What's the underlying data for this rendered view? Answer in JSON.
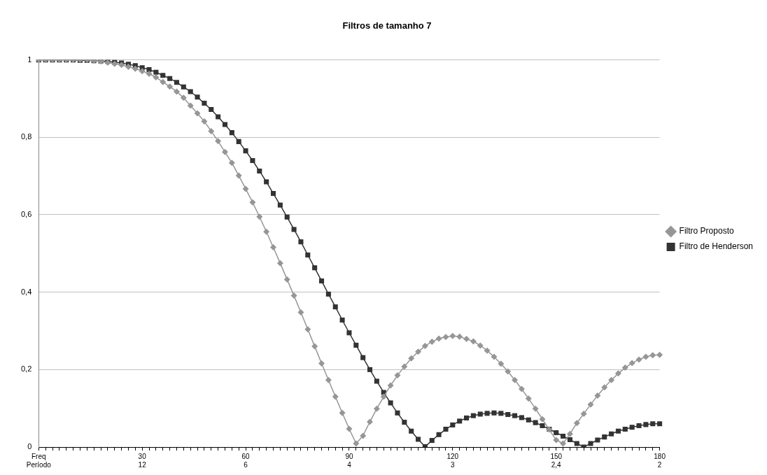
{
  "chart_data": {
    "type": "line",
    "title": "Filtros de tamanho 7",
    "categories": [
      "Freq\nPeríodo",
      null,
      null,
      null,
      null,
      null,
      null,
      null,
      null,
      null,
      null,
      null,
      null,
      null,
      null,
      "30\n12",
      null,
      null,
      null,
      null,
      null,
      null,
      null,
      null,
      null,
      null,
      null,
      null,
      null,
      null,
      "60\n6",
      null,
      null,
      null,
      null,
      null,
      null,
      null,
      null,
      null,
      null,
      null,
      null,
      null,
      null,
      "90\n4",
      null,
      null,
      null,
      null,
      null,
      null,
      null,
      null,
      null,
      null,
      null,
      null,
      null,
      null,
      "120\n3",
      null,
      null,
      null,
      null,
      null,
      null,
      null,
      null,
      null,
      null,
      null,
      null,
      null,
      null,
      "150\n2,4",
      null,
      null,
      null,
      null,
      null,
      null,
      null,
      null,
      null,
      null,
      null,
      null,
      null,
      null,
      "180\n2"
    ],
    "series": [
      {
        "name": "Filtro Proposto",
        "color": "#969696",
        "marker": "diamond",
        "values": [
          1,
          1,
          1,
          1,
          1,
          1,
          1,
          1,
          0.998,
          0.996,
          0.993,
          0.99,
          0.987,
          0.982,
          0.977,
          0.971,
          0.964,
          0.955,
          0.943,
          0.931,
          0.918,
          0.902,
          0.882,
          0.862,
          0.841,
          0.816,
          0.79,
          0.762,
          0.734,
          0.701,
          0.667,
          0.632,
          0.595,
          0.556,
          0.516,
          0.475,
          0.433,
          0.391,
          0.348,
          0.304,
          0.26,
          0.216,
          0.173,
          0.13,
          0.088,
          0.047,
          0.009,
          0.029,
          0.065,
          0.099,
          0.13,
          0.159,
          0.185,
          0.208,
          0.229,
          0.246,
          0.261,
          0.272,
          0.28,
          0.284,
          0.287,
          0.285,
          0.279,
          0.273,
          0.262,
          0.249,
          0.233,
          0.215,
          0.195,
          0.173,
          0.15,
          0.125,
          0.099,
          0.072,
          0.045,
          0.018,
          0.009,
          0.034,
          0.062,
          0.086,
          0.11,
          0.133,
          0.154,
          0.173,
          0.19,
          0.205,
          0.217,
          0.226,
          0.233,
          0.237,
          0.238
        ]
      },
      {
        "name": "Filtro de Henderson",
        "color": "#333333",
        "marker": "square",
        "values": [
          1,
          1,
          1,
          1,
          1,
          1,
          0.999,
          0.999,
          0.998,
          0.997,
          0.996,
          0.994,
          0.992,
          0.989,
          0.985,
          0.98,
          0.975,
          0.968,
          0.96,
          0.952,
          0.942,
          0.93,
          0.918,
          0.904,
          0.888,
          0.872,
          0.853,
          0.833,
          0.812,
          0.789,
          0.765,
          0.74,
          0.713,
          0.685,
          0.655,
          0.625,
          0.594,
          0.562,
          0.53,
          0.496,
          0.463,
          0.429,
          0.395,
          0.362,
          0.328,
          0.295,
          0.263,
          0.231,
          0.2,
          0.17,
          0.141,
          0.114,
          0.088,
          0.064,
          0.041,
          0.02,
          0.001,
          0.017,
          0.032,
          0.046,
          0.057,
          0.067,
          0.075,
          0.081,
          0.085,
          0.087,
          0.088,
          0.087,
          0.084,
          0.081,
          0.076,
          0.07,
          0.063,
          0.055,
          0.046,
          0.037,
          0.028,
          0.019,
          0.009,
          0,
          0.009,
          0.018,
          0.026,
          0.034,
          0.041,
          0.046,
          0.051,
          0.055,
          0.058,
          0.06,
          0.06
        ]
      }
    ],
    "ylim": [
      0,
      1
    ],
    "yticks": [
      0,
      {
        "value": 0.2,
        "label": "0,2"
      },
      {
        "value": 0.4,
        "label": "0,4"
      },
      {
        "value": 0.6,
        "label": "0,6"
      },
      {
        "value": 0.8,
        "label": "0,8"
      },
      1
    ],
    "grid": "y",
    "legend": "right",
    "line_style": "solid"
  }
}
